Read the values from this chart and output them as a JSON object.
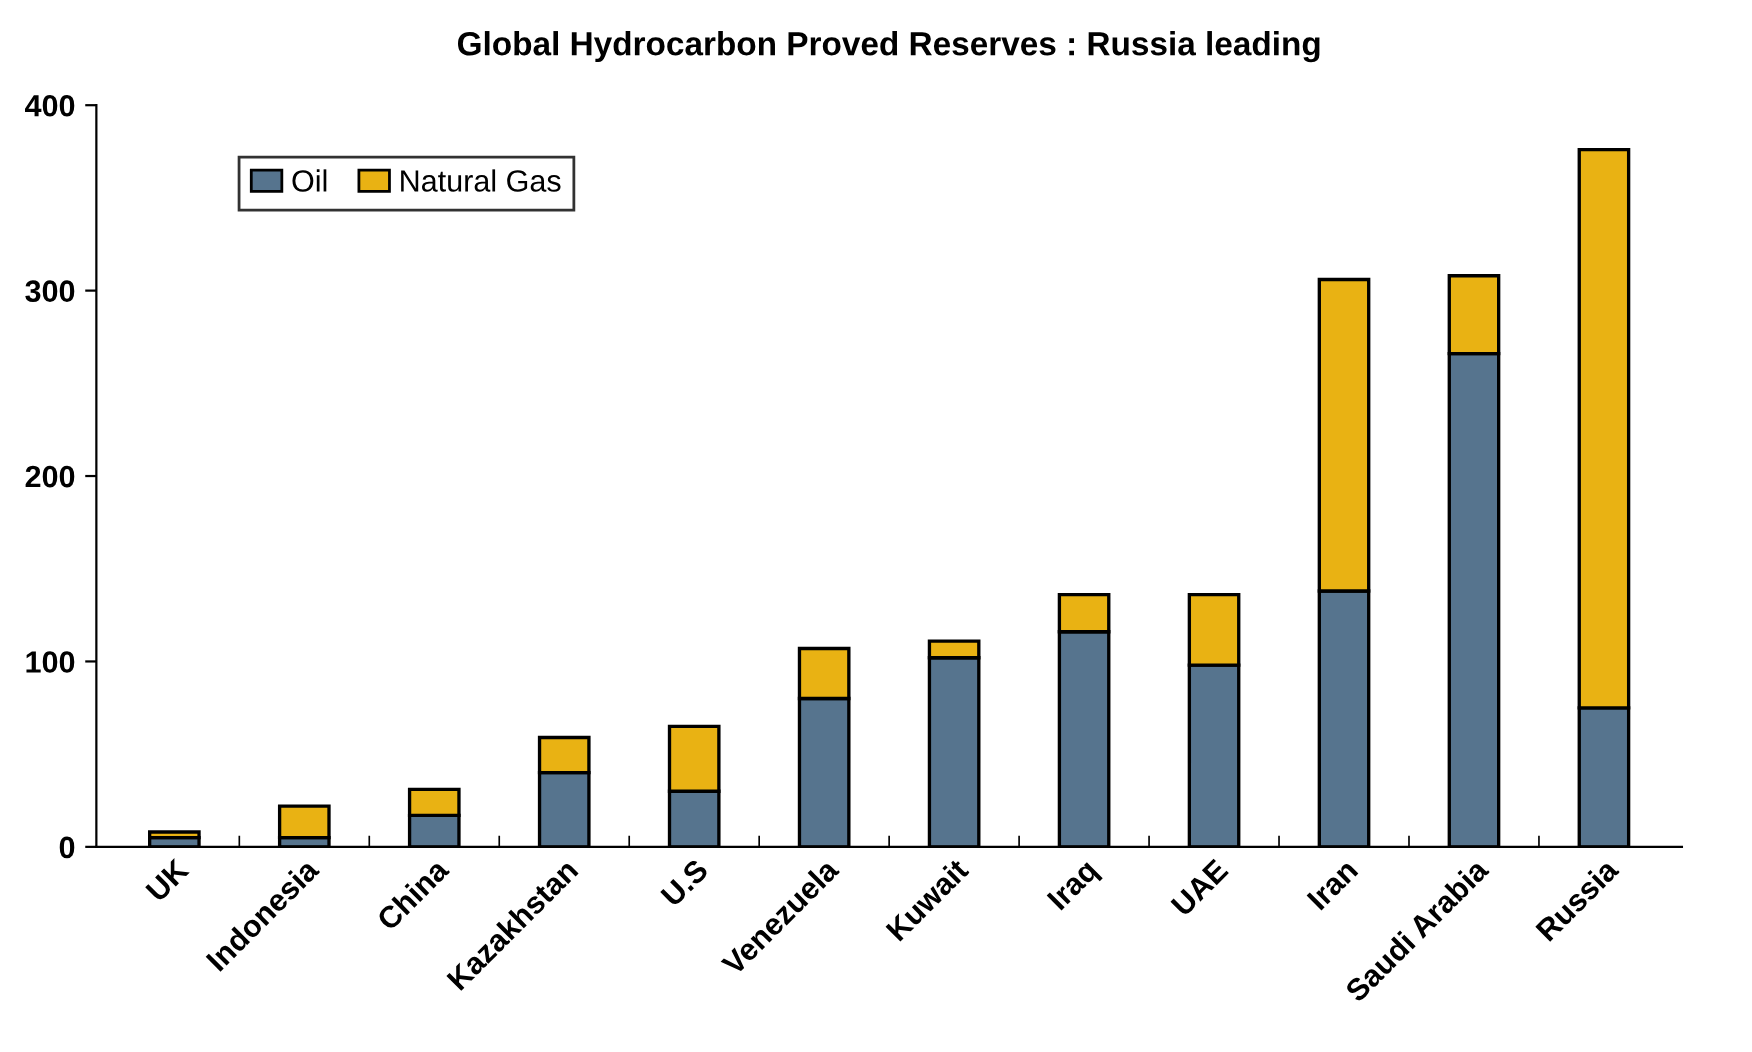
{
  "chart_data": {
    "type": "bar",
    "title": "Global Hydrocarbon Proved Reserves : Russia leading",
    "stacked": true,
    "categories": [
      "UK",
      "Indonesia",
      "China",
      "Kazakhstan",
      "U.S",
      "Venezuela",
      "Kuwait",
      "Iraq",
      "UAE",
      "Iran",
      "Saudi Arabia",
      "Russia"
    ],
    "series": [
      {
        "name": "Oil",
        "color": "#56748e",
        "values": [
          5,
          5,
          17,
          40,
          30,
          80,
          102,
          116,
          98,
          138,
          266,
          75
        ]
      },
      {
        "name": "Natural Gas",
        "color": "#e9b213",
        "values": [
          3,
          17,
          14,
          19,
          35,
          27,
          9,
          20,
          38,
          168,
          42,
          301
        ]
      }
    ],
    "ylim": [
      0,
      400
    ],
    "yticks": [
      0,
      100,
      200,
      300,
      400
    ],
    "grid": false,
    "legend": "top left"
  }
}
